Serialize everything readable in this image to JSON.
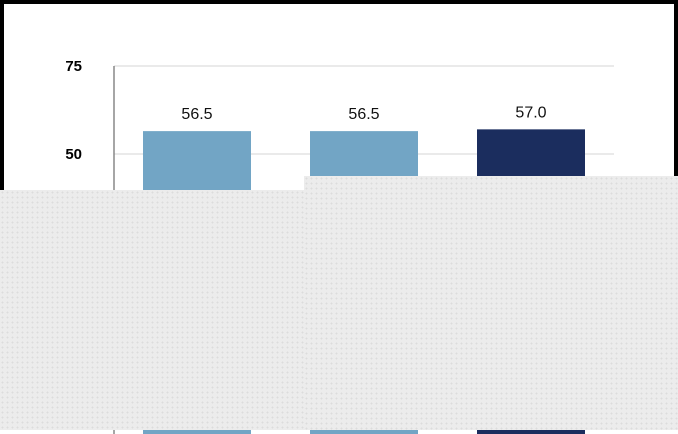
{
  "chart_data": {
    "type": "bar",
    "title": "",
    "xlabel": "",
    "ylabel": "",
    "ylim": [
      0,
      75
    ],
    "yticks": [
      50,
      75
    ],
    "ytick_labels": [
      "50",
      "75"
    ],
    "grid": true,
    "bars": [
      {
        "value": 56.5,
        "label": "56.5",
        "color": "#72a5c5"
      },
      {
        "value": 56.5,
        "label": "56.5",
        "color": "#72a5c5"
      },
      {
        "value": 57.0,
        "label": "57.0",
        "color": "#1b2d5e"
      }
    ]
  },
  "occlusion": {
    "color": "#ececec"
  }
}
